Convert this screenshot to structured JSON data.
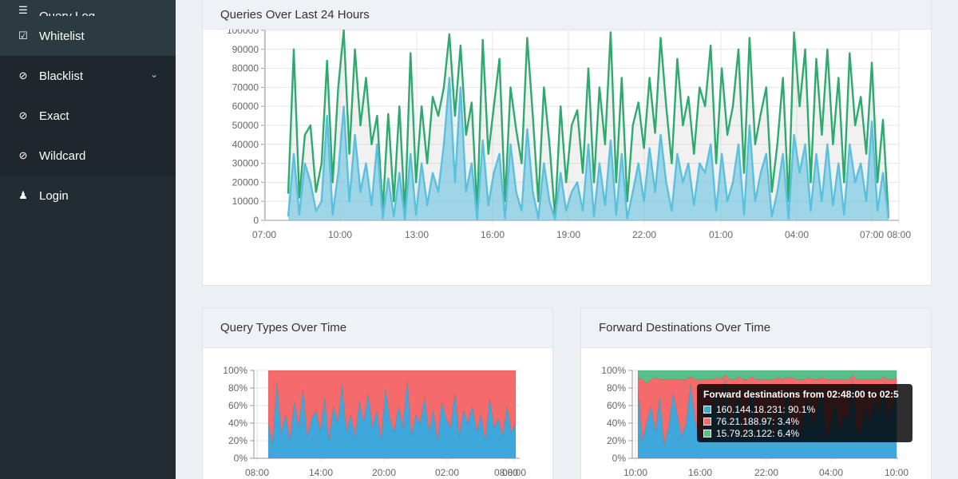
{
  "sidebar": {
    "items": [
      {
        "label": "Query Log",
        "icon": "list-icon"
      },
      {
        "label": "Whitelist",
        "icon": "checkbox-icon"
      },
      {
        "label": "Blacklist",
        "icon": "ban-icon"
      },
      {
        "label": "Exact",
        "icon": "ban-icon"
      },
      {
        "label": "Wildcard",
        "icon": "ban-icon"
      },
      {
        "label": "Login",
        "icon": "user-icon"
      }
    ]
  },
  "colors": {
    "sidebar_bg": "#222d32",
    "green_series": "#2eaa6e",
    "blue_series": "#5bc0de",
    "red_area": "#f56a6a",
    "blue_area": "#3ea8dd",
    "green_area": "#58c08a"
  },
  "panels": {
    "queries": {
      "title": "Queries Over Last 24 Hours"
    },
    "query_types": {
      "title": "Query Types Over Time"
    },
    "forward": {
      "title": "Forward Destinations Over Time"
    }
  },
  "tooltip": {
    "title": "Forward destinations from 02:48:00 to 02:5",
    "rows": [
      {
        "text": "160.144.18.231: 90.1%",
        "color": "#3ea8dd"
      },
      {
        "text": "76.21.188.97: 3.4%",
        "color": "#f56a6a"
      },
      {
        "text": "15.79.23.122: 6.4%",
        "color": "#58c08a"
      }
    ]
  },
  "chart_data": [
    {
      "type": "area",
      "title": "Queries Over Last 24 Hours",
      "x_ticks": [
        "07:00",
        "10:00",
        "13:00",
        "16:00",
        "19:00",
        "22:00",
        "01:00",
        "04:00",
        "07:00",
        "08:00"
      ],
      "y_ticks": [
        "0",
        "10000",
        "20000",
        "30000",
        "40000",
        "50000",
        "60000",
        "70000",
        "80000",
        "90000",
        "100000"
      ],
      "ylim": [
        0,
        100000
      ],
      "grid": true,
      "series": [
        {
          "name": "",
          "color": "#2eaa6e",
          "values": [
            14000,
            90000,
            12000,
            45000,
            50000,
            15000,
            30000,
            84000,
            20000,
            70000,
            100000,
            35000,
            90000,
            50000,
            75000,
            40000,
            55000,
            5000,
            56000,
            10000,
            60000,
            3000,
            88000,
            20000,
            60000,
            30000,
            65000,
            55000,
            70000,
            98000,
            55000,
            92000,
            45000,
            62000,
            5000,
            95000,
            35000,
            60000,
            85000,
            10000,
            70000,
            48000,
            30000,
            96000,
            55000,
            10000,
            70000,
            40000,
            2000,
            60000,
            20000,
            50000,
            58000,
            25000,
            80000,
            20000,
            70000,
            40000,
            99000,
            20000,
            75000,
            10000,
            50000,
            62000,
            38000,
            75000,
            46000,
            96000,
            60000,
            30000,
            85000,
            50000,
            65000,
            35000,
            70000,
            60000,
            92000,
            30000,
            80000,
            45000,
            60000,
            90000,
            25000,
            96000,
            40000,
            56000,
            70000,
            15000,
            40000,
            75000,
            10000,
            99000,
            60000,
            90000,
            20000,
            85000,
            45000,
            90000,
            40000,
            75000,
            20000,
            88000,
            50000,
            65000,
            35000,
            83000,
            20000,
            53000,
            1000
          ]
        },
        {
          "name": "",
          "color": "#5bc0de",
          "values": [
            2000,
            35000,
            3000,
            30000,
            20000,
            5000,
            10000,
            55000,
            3000,
            25000,
            60000,
            10000,
            45000,
            15000,
            30000,
            8000,
            40000,
            1000,
            22000,
            2000,
            25000,
            500,
            35000,
            3000,
            30000,
            8000,
            25000,
            15000,
            40000,
            75000,
            20000,
            70000,
            15000,
            30000,
            500,
            42000,
            8000,
            25000,
            35000,
            1000,
            40000,
            15000,
            5000,
            48000,
            15000,
            1000,
            30000,
            10000,
            500,
            25000,
            5000,
            15000,
            20000,
            5000,
            40000,
            2000,
            30000,
            8000,
            42000,
            3000,
            35000,
            1000,
            15000,
            30000,
            10000,
            38000,
            15000,
            45000,
            20000,
            5000,
            35000,
            20000,
            30000,
            8000,
            30000,
            25000,
            40000,
            5000,
            35000,
            10000,
            20000,
            40000,
            3000,
            50000,
            10000,
            25000,
            35000,
            2000,
            15000,
            35000,
            1000,
            45000,
            25000,
            40000,
            5000,
            35000,
            10000,
            40000,
            8000,
            30000,
            3000,
            40000,
            20000,
            30000,
            10000,
            52000,
            5000,
            25000,
            1000
          ]
        }
      ]
    },
    {
      "type": "area",
      "title": "Query Types Over Time",
      "x_ticks": [
        "08:00",
        "14:00",
        "20:00",
        "02:00",
        "08:00",
        "08:00"
      ],
      "y_ticks": [
        "0%",
        "20%",
        "40%",
        "60%",
        "80%",
        "100%"
      ],
      "ylim": [
        0,
        100
      ],
      "grid": true,
      "series": [
        {
          "name": "",
          "color": "#3ea8dd",
          "values": [
            40,
            15,
            88,
            30,
            50,
            20,
            65,
            35,
            80,
            25,
            45,
            55,
            30,
            70,
            20,
            60,
            40,
            85,
            30,
            50,
            25,
            65,
            40,
            75,
            35,
            55,
            20,
            80,
            45,
            30,
            60,
            35,
            90,
            25,
            50,
            40,
            70,
            30,
            55,
            20,
            65,
            45,
            35,
            75,
            25,
            55,
            40,
            60,
            30,
            50,
            20,
            70,
            35,
            45,
            25,
            60,
            30,
            40
          ]
        },
        {
          "name": "",
          "color": "#f56a6a",
          "values": [
            60,
            85,
            12,
            70,
            50,
            80,
            35,
            65,
            20,
            75,
            55,
            45,
            70,
            30,
            80,
            40,
            60,
            15,
            70,
            50,
            75,
            35,
            60,
            25,
            65,
            45,
            80,
            20,
            55,
            70,
            40,
            65,
            10,
            75,
            50,
            60,
            30,
            70,
            45,
            80,
            35,
            55,
            65,
            25,
            75,
            45,
            60,
            40,
            70,
            50,
            80,
            30,
            65,
            55,
            75,
            40,
            70,
            60
          ]
        }
      ]
    },
    {
      "type": "area",
      "title": "Forward Destinations Over Time",
      "x_ticks": [
        "10:00",
        "16:00",
        "22:00",
        "04:00",
        "10:00"
      ],
      "y_ticks": [
        "0%",
        "20%",
        "40%",
        "60%",
        "80%",
        "100%"
      ],
      "ylim": [
        0,
        100
      ],
      "grid": true,
      "series": [
        {
          "name": "",
          "color": "#3ea8dd",
          "values": [
            80,
            20,
            40,
            60,
            30,
            70,
            15,
            35,
            75,
            50,
            25,
            40,
            85,
            45,
            20,
            30,
            65,
            55,
            80,
            40,
            90,
            30,
            60,
            75,
            20,
            45,
            85,
            25,
            50,
            35,
            70,
            20,
            60,
            40,
            80,
            30,
            45,
            25,
            55,
            70,
            35,
            60,
            80,
            20,
            40,
            65,
            30,
            50,
            45,
            90,
            25,
            35,
            60,
            40,
            70,
            50,
            85,
            45,
            60,
            80
          ]
        },
        {
          "name": "",
          "color": "#f56a6a",
          "values": [
            12,
            70,
            45,
            30,
            62,
            20,
            75,
            55,
            15,
            40,
            65,
            50,
            8,
            45,
            70,
            60,
            25,
            35,
            12,
            50,
            5,
            60,
            30,
            18,
            70,
            45,
            8,
            65,
            40,
            55,
            20,
            70,
            32,
            50,
            12,
            62,
            45,
            65,
            35,
            22,
            55,
            30,
            12,
            70,
            50,
            25,
            60,
            40,
            45,
            4,
            65,
            55,
            30,
            50,
            20,
            40,
            8,
            45,
            30,
            12
          ]
        },
        {
          "name": "",
          "color": "#58c08a",
          "values": [
            8,
            10,
            15,
            10,
            8,
            10,
            10,
            10,
            10,
            10,
            10,
            10,
            7,
            10,
            10,
            10,
            10,
            10,
            8,
            10,
            5,
            10,
            10,
            7,
            10,
            10,
            7,
            10,
            10,
            10,
            10,
            10,
            8,
            10,
            8,
            8,
            10,
            10,
            10,
            8,
            10,
            10,
            8,
            10,
            10,
            10,
            10,
            10,
            10,
            6,
            10,
            10,
            10,
            10,
            10,
            10,
            7,
            10,
            10,
            8
          ]
        }
      ]
    }
  ]
}
